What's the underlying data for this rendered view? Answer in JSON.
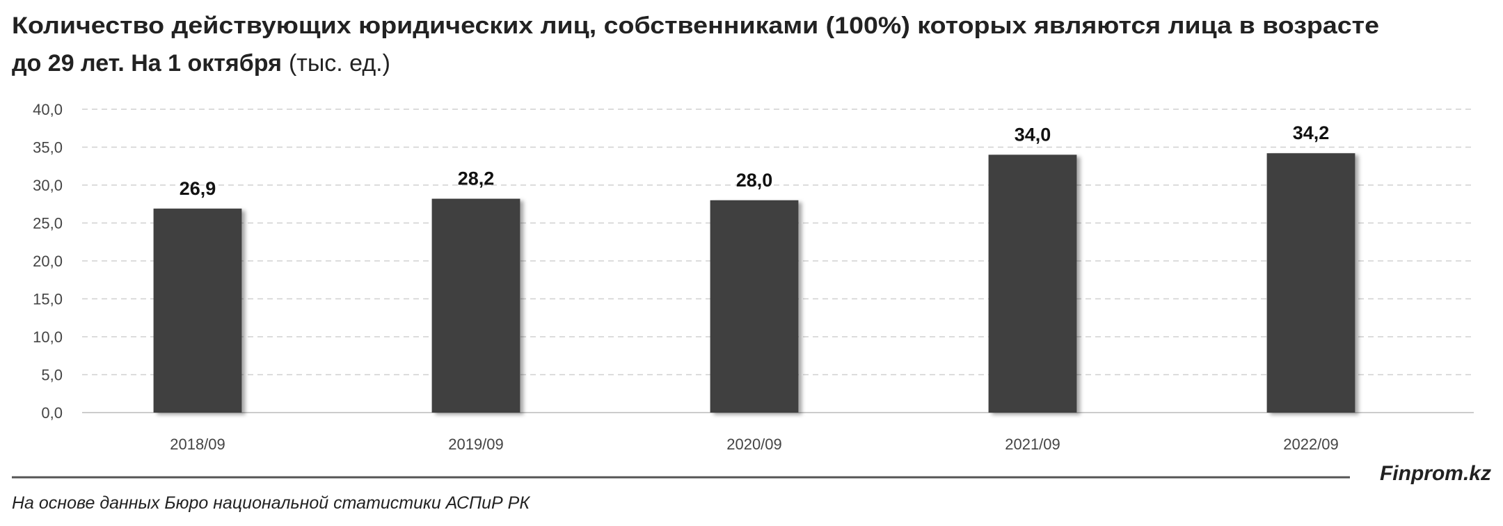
{
  "chart_data": {
    "type": "bar",
    "title": [
      "Количество действующих юридических лиц, собственниками (100%) которых являются лица в возрасте",
      "до 29 лет. На 1 октября"
    ],
    "unit": "(тыс. ед.)",
    "categories": [
      "2018/09",
      "2019/09",
      "2020/09",
      "2021/09",
      "2022/09"
    ],
    "values": [
      26.9,
      28.2,
      28.0,
      34.0,
      34.2
    ],
    "value_labels": [
      "26,9",
      "28,2",
      "28,0",
      "34,0",
      "34,2"
    ],
    "color": "#404040",
    "ylim": [
      0,
      40
    ],
    "yticks": [
      {
        "value": 0,
        "label": "0,0"
      },
      {
        "value": 5,
        "label": "5,0"
      },
      {
        "value": 10,
        "label": "10,0"
      },
      {
        "value": 15,
        "label": "15,0"
      },
      {
        "value": 20,
        "label": "20,0"
      },
      {
        "value": 25,
        "label": "25,0"
      },
      {
        "value": 30,
        "label": "30,0"
      },
      {
        "value": 35,
        "label": "35,0"
      },
      {
        "value": 40,
        "label": "40,0"
      }
    ],
    "grid": true,
    "brand": "Finprom.kz",
    "source": "На основе данных Бюро национальной статистики АСПиР РК"
  }
}
